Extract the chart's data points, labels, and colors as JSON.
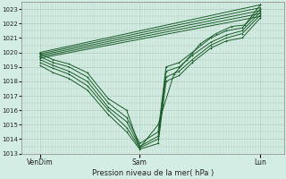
{
  "title": "Pression niveau de la mer( hPa )",
  "background_color": "#d4ede4",
  "grid_color": "#b0ccbf",
  "line_color": "#1a5c2a",
  "ylim": [
    1013,
    1023.5
  ],
  "yticks": [
    1013,
    1014,
    1015,
    1016,
    1017,
    1018,
    1019,
    1020,
    1021,
    1022,
    1023
  ],
  "xtick_labels": [
    "VenDim",
    "Sam",
    "Lun"
  ],
  "xtick_positions": [
    0.07,
    0.45,
    0.91
  ],
  "xlim": [
    0.0,
    1.0
  ],
  "series": [
    [
      [
        0.07,
        1020.0
      ],
      [
        0.91,
        1023.3
      ]
    ],
    [
      [
        0.07,
        1019.9
      ],
      [
        0.91,
        1023.1
      ]
    ],
    [
      [
        0.07,
        1019.8
      ],
      [
        0.91,
        1022.9
      ]
    ],
    [
      [
        0.07,
        1019.7
      ],
      [
        0.91,
        1022.7
      ]
    ],
    [
      [
        0.07,
        1019.6
      ],
      [
        0.91,
        1022.5
      ]
    ],
    [
      [
        0.07,
        1019.9
      ],
      [
        0.12,
        1019.5
      ],
      [
        0.18,
        1019.2
      ],
      [
        0.25,
        1018.6
      ],
      [
        0.33,
        1016.8
      ],
      [
        0.4,
        1016.0
      ],
      [
        0.45,
        1013.4
      ],
      [
        0.52,
        1015.0
      ],
      [
        0.58,
        1018.5
      ],
      [
        0.63,
        1019.5
      ],
      [
        0.68,
        1020.6
      ],
      [
        0.74,
        1021.3
      ],
      [
        0.8,
        1021.8
      ],
      [
        0.85,
        1021.9
      ],
      [
        0.91,
        1023.3
      ]
    ],
    [
      [
        0.07,
        1019.7
      ],
      [
        0.12,
        1019.3
      ],
      [
        0.18,
        1019.0
      ],
      [
        0.25,
        1018.3
      ],
      [
        0.33,
        1016.5
      ],
      [
        0.4,
        1015.5
      ],
      [
        0.45,
        1013.7
      ],
      [
        0.52,
        1014.5
      ],
      [
        0.55,
        1019.0
      ],
      [
        0.6,
        1019.3
      ],
      [
        0.65,
        1020.0
      ],
      [
        0.72,
        1021.0
      ],
      [
        0.78,
        1021.5
      ],
      [
        0.84,
        1021.7
      ],
      [
        0.91,
        1023.0
      ]
    ],
    [
      [
        0.07,
        1019.5
      ],
      [
        0.12,
        1019.1
      ],
      [
        0.18,
        1018.7
      ],
      [
        0.25,
        1018.0
      ],
      [
        0.33,
        1016.2
      ],
      [
        0.4,
        1015.2
      ],
      [
        0.45,
        1013.5
      ],
      [
        0.52,
        1014.2
      ],
      [
        0.55,
        1018.7
      ],
      [
        0.6,
        1019.0
      ],
      [
        0.65,
        1019.8
      ],
      [
        0.72,
        1020.7
      ],
      [
        0.78,
        1021.2
      ],
      [
        0.84,
        1021.5
      ],
      [
        0.91,
        1022.8
      ]
    ],
    [
      [
        0.07,
        1019.3
      ],
      [
        0.12,
        1018.9
      ],
      [
        0.18,
        1018.5
      ],
      [
        0.25,
        1017.7
      ],
      [
        0.33,
        1016.0
      ],
      [
        0.4,
        1014.8
      ],
      [
        0.45,
        1013.4
      ],
      [
        0.52,
        1014.0
      ],
      [
        0.55,
        1018.3
      ],
      [
        0.6,
        1018.7
      ],
      [
        0.65,
        1019.5
      ],
      [
        0.72,
        1020.5
      ],
      [
        0.78,
        1021.0
      ],
      [
        0.84,
        1021.3
      ],
      [
        0.91,
        1022.6
      ]
    ],
    [
      [
        0.07,
        1019.1
      ],
      [
        0.12,
        1018.6
      ],
      [
        0.18,
        1018.2
      ],
      [
        0.25,
        1017.4
      ],
      [
        0.33,
        1015.7
      ],
      [
        0.4,
        1014.5
      ],
      [
        0.45,
        1013.3
      ],
      [
        0.52,
        1013.7
      ],
      [
        0.55,
        1018.0
      ],
      [
        0.6,
        1018.4
      ],
      [
        0.65,
        1019.3
      ],
      [
        0.72,
        1020.3
      ],
      [
        0.78,
        1020.8
      ],
      [
        0.84,
        1021.0
      ],
      [
        0.91,
        1022.4
      ]
    ]
  ]
}
